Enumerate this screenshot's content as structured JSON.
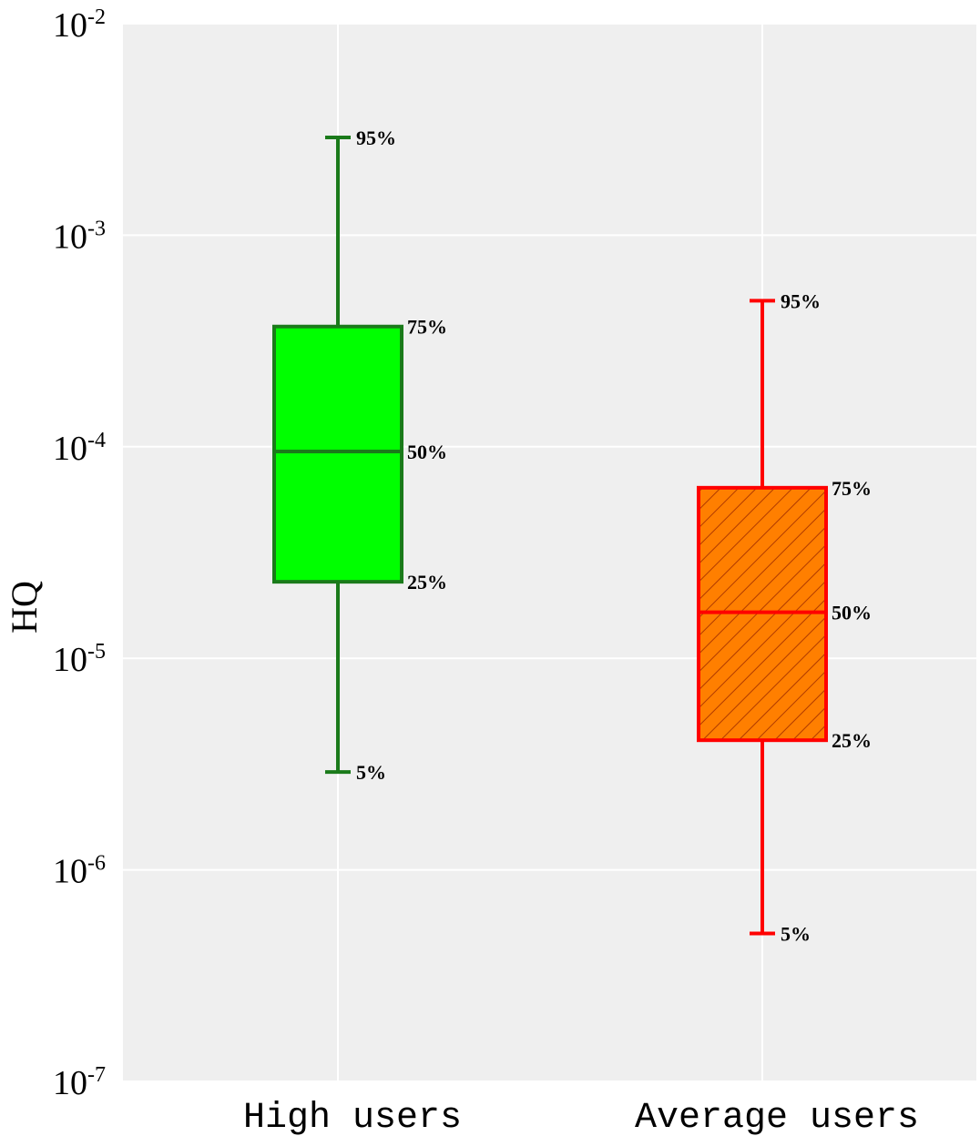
{
  "chart_data": {
    "type": "box",
    "ylabel": "HQ",
    "xlabel": "",
    "yscale": "log",
    "ylim": [
      1e-07,
      0.01
    ],
    "yticks": [
      {
        "value": 1e-07,
        "base": "10",
        "exp": "-7"
      },
      {
        "value": 1e-06,
        "base": "10",
        "exp": "-6"
      },
      {
        "value": 1e-05,
        "base": "10",
        "exp": "-5"
      },
      {
        "value": 0.0001,
        "base": "10",
        "exp": "-4"
      },
      {
        "value": 0.001,
        "base": "10",
        "exp": "-3"
      },
      {
        "value": 0.01,
        "base": "10",
        "exp": "-2"
      }
    ],
    "grid": true,
    "background": "#efefef",
    "categories": [
      "High users",
      "Average users"
    ],
    "series": [
      {
        "category": "High users",
        "p5": 2.9e-06,
        "p25": 2.3e-05,
        "p50": 9.5e-05,
        "p75": 0.00037,
        "p95": 0.0029,
        "fill": "#00ff00",
        "stroke": "#1a7a1a",
        "hatch": false
      },
      {
        "category": "Average users",
        "p5": 5e-07,
        "p25": 4.1e-06,
        "p50": 1.65e-05,
        "p75": 6.4e-05,
        "p95": 0.00049,
        "fill": "#ff7f00",
        "stroke": "#ff0000",
        "hatch": true
      }
    ],
    "percentile_labels": {
      "p5": "5%",
      "p25": "25%",
      "p50": "50%",
      "p75": "75%",
      "p95": "95%"
    }
  }
}
